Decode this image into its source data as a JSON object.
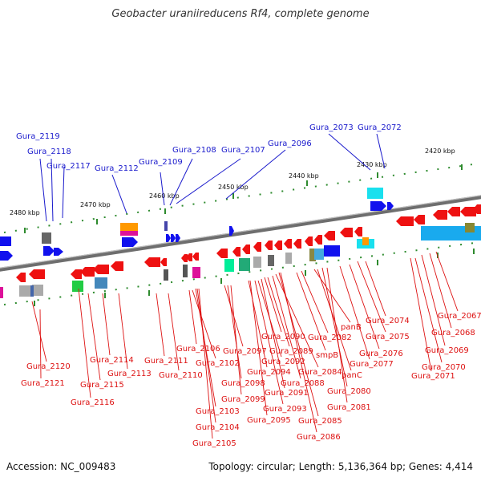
{
  "title": "Geobacter uraniireducens Rf4, complete genome",
  "footer": {
    "accession": "Accession: NC_009483",
    "topology": "Topology: circular; Length: 5,136,364 bp; Genes: 4,414"
  },
  "colors": {
    "label_top": "#1a1acc",
    "label_bottom": "#dd1111",
    "axis": "#7a7a7a",
    "ticks": "#2e8b2e",
    "gene_red": "#ee1111",
    "gene_blue": "#1111ee"
  },
  "scale": {
    "ticks": [
      "2420 kbp",
      "2430 kbp",
      "2440 kbp",
      "2450 kbp",
      "2460 kbp",
      "2470 kbp",
      "2480 kbp"
    ]
  },
  "genes_top": [
    "Gura_2119",
    "Gura_2118",
    "Gura_2117",
    "Gura_2112",
    "Gura_2109",
    "Gura_2108",
    "Gura_2107",
    "Gura_2096",
    "Gura_2073",
    "Gura_2072"
  ],
  "genes_bottom": [
    "Gura_2120",
    "Gura_2121",
    "Gura_2116",
    "Gura_2115",
    "Gura_2114",
    "Gura_2113",
    "Gura_2111",
    "Gura_2110",
    "Gura_2106",
    "Gura_2102",
    "Gura_2103",
    "Gura_2104",
    "Gura_2105",
    "Gura_2097",
    "Gura_2098",
    "Gura_2099",
    "Gura_2094",
    "Gura_2095",
    "Gura_2093",
    "Gura_2092",
    "Gura_2091",
    "Gura_2090",
    "Gura_2089",
    "Gura_2088",
    "Gura_2084",
    "Gura_2085",
    "Gura_2086",
    "smpB",
    "Gura_2082",
    "panB",
    "panC",
    "Gura_2080",
    "Gura_2081",
    "Gura_2077",
    "Gura_2076",
    "Gura_2075",
    "Gura_2074",
    "Gura_2071",
    "Gura_2070",
    "Gura_2069",
    "Gura_2068",
    "Gura_2067"
  ]
}
